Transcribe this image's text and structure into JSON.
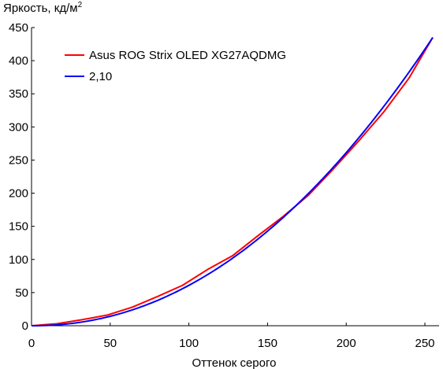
{
  "chart_data": {
    "type": "line",
    "ylabel_main": "Яркость, кд/м",
    "ylabel_sup": "2",
    "xlabel": "Оттенок серого",
    "xlim": [
      0,
      255
    ],
    "ylim": [
      0,
      450
    ],
    "xticks": [
      0,
      50,
      100,
      150,
      200,
      250
    ],
    "yticks": [
      0,
      50,
      100,
      150,
      200,
      250,
      300,
      350,
      400,
      450
    ],
    "grid": false,
    "legend_position": "top-left",
    "series": [
      {
        "name": "Asus ROG Strix OLED XG27AQDMG",
        "color": "#ff0000",
        "x": [
          0,
          16,
          32,
          48,
          64,
          80,
          96,
          112,
          128,
          144,
          160,
          176,
          192,
          208,
          224,
          240,
          255
        ],
        "y": [
          0,
          3,
          9,
          16,
          28,
          44,
          61,
          85,
          106,
          136,
          165,
          197,
          237,
          279,
          323,
          374,
          435
        ]
      },
      {
        "name": "2,10",
        "color": "#0000ff",
        "gamma": 2.1,
        "ymax": 435
      }
    ]
  }
}
